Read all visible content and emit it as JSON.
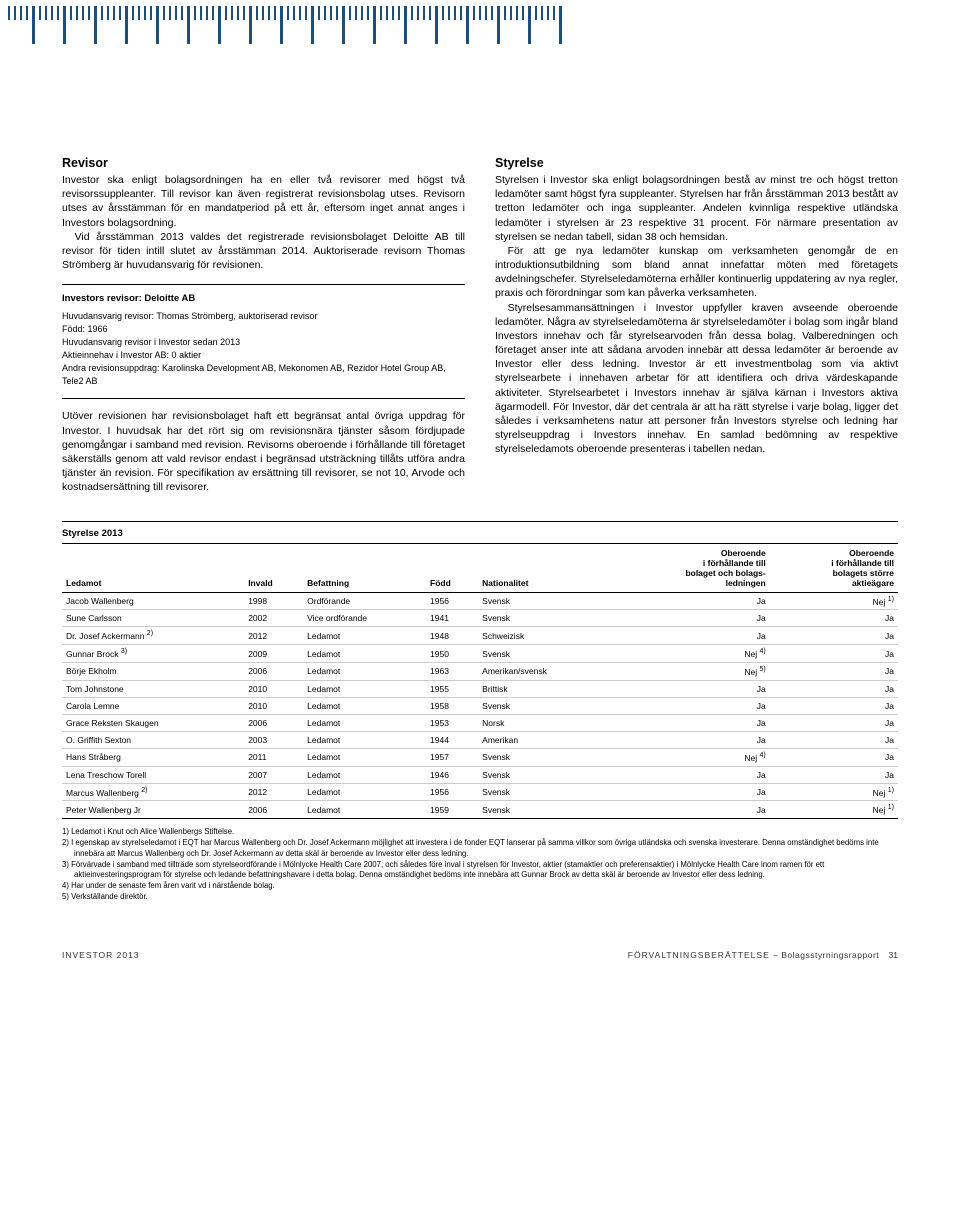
{
  "tickband": {
    "pattern_units": 18,
    "short_color": "#1f4e79",
    "long_color": "#1f4e79"
  },
  "left": {
    "h_revisor": "Revisor",
    "p1": "Investor ska enligt bolagsordningen ha en eller två revisorer med högst två revisorssuppleanter. Till revisor kan även registrerat revisionsbolag utses. Revisorn utses av årsstämman för en mandatperiod på ett år, eftersom inget annat anges i Investors bolagsordning.",
    "p2": "Vid årsstämman 2013 valdes det registrerade revisionsbolaget Deloitte AB till revisor för tiden intill slutet av årsstämman 2014. Auktoriserade revisorn Thomas Strömberg är huvudansvarig för revisionen.",
    "box_title": "Investors revisor: Deloitte AB",
    "box_lines": [
      "Huvudansvarig revisor: Thomas Strömberg, auktoriserad revisor",
      "Född: 1966",
      "Huvudansvarig revisor i Investor sedan 2013",
      "Aktieinnehav i Investor AB: 0 aktier",
      "Andra revisionsuppdrag: Karolinska Development AB, Mekonomen AB, Rezidor Hotel Group AB, Tele2 AB"
    ],
    "p3": "Utöver revisionen har revisionsbolaget haft ett begränsat antal övriga uppdrag för Investor. I huvudsak har det rört sig om revisionsnära tjänster såsom fördjupade genomgångar i samband med revision. Revisorns oberoende i förhållande till företaget säkerställs genom att vald revisor endast i begränsad utsträckning tillåts utföra andra tjänster än revision. För specifikation av ersättning till revisorer, se not 10, Arvode och kostnadsersättning till revisorer."
  },
  "right": {
    "h_styrelse": "Styrelse",
    "p1": "Styrelsen i Investor ska enligt bolagsordningen bestå av minst tre och högst tretton ledamöter samt högst fyra suppleanter. Styrelsen har från årsstämman 2013 bestått av tretton ledamöter och inga suppleanter. Andelen kvinnliga respektive utländska ledamöter i styrelsen är 23 respektive 31 procent. För närmare presentation av styrelsen se nedan tabell, sidan 38 och hemsidan.",
    "p2": "För att ge nya ledamöter kunskap om verksamheten genomgår de en introduktionsutbildning som bland annat innefattar möten med företagets avdelningschefer. Styrelseledamöterna erhåller kontinuerlig uppdatering av nya regler, praxis och förordningar som kan påverka verksamheten.",
    "p3": "Styrelsesammansättningen i Investor uppfyller kraven avseende oberoende ledamöter. Några av styrelseledamöterna är styrelseledamöter i bolag som ingår bland Investors innehav och får styrelsearvoden från dessa bolag. Valberedningen och företaget anser inte att sådana arvoden innebär att dessa ledamöter är beroende av Investor eller dess ledning. Investor är ett investmentbolag som via aktivt styrelsearbete i innehaven arbetar för att identifiera och driva värdeskapande aktiviteter. Styrelsearbetet i Investors innehav är själva kärnan i Investors aktiva ägarmodell. För Investor, där det centrala är att ha rätt styrelse i varje bolag, ligger det således i verksamhetens natur att personer från Investors styrelse och ledning har styrelseuppdrag i Investors innehav. En samlad bedömning av respektive styrelseledamots oberoende presenteras i tabellen nedan."
  },
  "table": {
    "title": "Styrelse 2013",
    "headers": {
      "ledamot": "Ledamot",
      "invald": "Invald",
      "befattning": "Befattning",
      "fodd": "Född",
      "nationalitet": "Nationalitet",
      "oberoende1": "Oberoende\ni förhållande till\nbolaget och bolags-\nledningen",
      "oberoende2": "Oberoende\ni förhållande till\nbolagets större\naktieägare"
    },
    "rows": [
      {
        "n": "Jacob Wallenberg",
        "inv": "1998",
        "bef": "Ordförande",
        "f": "1956",
        "nat": "Svensk",
        "o1": "Ja",
        "o2": "Nej",
        "o2s": "1)"
      },
      {
        "n": "Sune Carlsson",
        "inv": "2002",
        "bef": "Vice ordförande",
        "f": "1941",
        "nat": "Svensk",
        "o1": "Ja",
        "o2": "Ja"
      },
      {
        "n": "Dr. Josef Ackermann",
        "ns": "2)",
        "inv": "2012",
        "bef": "Ledamot",
        "f": "1948",
        "nat": "Schweizisk",
        "o1": "Ja",
        "o2": "Ja"
      },
      {
        "n": "Gunnar Brock",
        "ns": "3)",
        "inv": "2009",
        "bef": "Ledamot",
        "f": "1950",
        "nat": "Svensk",
        "o1": "Nej",
        "o1s": "4)",
        "o2": "Ja"
      },
      {
        "n": "Börje Ekholm",
        "inv": "2006",
        "bef": "Ledamot",
        "f": "1963",
        "nat": "Amerikan/svensk",
        "o1": "Nej",
        "o1s": "5)",
        "o2": "Ja"
      },
      {
        "n": "Tom Johnstone",
        "inv": "2010",
        "bef": "Ledamot",
        "f": "1955",
        "nat": "Brittisk",
        "o1": "Ja",
        "o2": "Ja"
      },
      {
        "n": "Carola Lemne",
        "inv": "2010",
        "bef": "Ledamot",
        "f": "1958",
        "nat": "Svensk",
        "o1": "Ja",
        "o2": "Ja"
      },
      {
        "n": "Grace Reksten Skaugen",
        "inv": "2006",
        "bef": "Ledamot",
        "f": "1953",
        "nat": "Norsk",
        "o1": "Ja",
        "o2": "Ja"
      },
      {
        "n": "O. Griffith Sexton",
        "inv": "2003",
        "bef": "Ledamot",
        "f": "1944",
        "nat": "Amerikan",
        "o1": "Ja",
        "o2": "Ja"
      },
      {
        "n": "Hans Stråberg",
        "inv": "2011",
        "bef": "Ledamot",
        "f": "1957",
        "nat": "Svensk",
        "o1": "Nej",
        "o1s": "4)",
        "o2": "Ja"
      },
      {
        "n": "Lena Treschow Torell",
        "inv": "2007",
        "bef": "Ledamot",
        "f": "1946",
        "nat": "Svensk",
        "o1": "Ja",
        "o2": "Ja"
      },
      {
        "n": "Marcus Wallenberg",
        "ns": "2)",
        "inv": "2012",
        "bef": "Ledamot",
        "f": "1956",
        "nat": "Svensk",
        "o1": "Ja",
        "o2": "Nej",
        "o2s": "1)"
      },
      {
        "n": "Peter Wallenberg Jr",
        "inv": "2006",
        "bef": "Ledamot",
        "f": "1959",
        "nat": "Svensk",
        "o1": "Ja",
        "o2": "Nej",
        "o2s": "1)"
      }
    ]
  },
  "footnotes": [
    "1) Ledamot i Knut och Alice Wallenbergs Stiftelse.",
    "2) I egenskap av styrelseledamot i EQT har Marcus Wallenberg och Dr. Josef Ackermann möjlighet att investera i de fonder EQT lanserar på samma villkor som övriga utländska och svenska investerare. Denna omständighet bedöms inte innebära att Marcus Wallenberg och Dr. Josef Ackermann av detta skäl är beroende av Investor eller dess ledning.",
    "3) Förvärvade i samband med tillträde som styrelseordförande i Mölnlycke Health Care 2007, och således före inval i styrelsen för Investor, aktier (stamaktier och preferensaktier) i Mölnlycke Health Care inom ramen för ett aktieinvesteringsprogram för styrelse och ledande befattningshavare i detta bolag. Denna omständighet bedöms inte innebära att Gunnar Brock av detta skäl är beroende av Investor eller dess ledning.",
    "4) Har under de senaste fem åren varit vd i närstående bolag.",
    "5) Verkställande direktör."
  ],
  "footer": {
    "left": "INVESTOR 2013",
    "right_a": "FÖRVALTNINGSBERÄTTELSE",
    "right_b": "– Bolagsstyrningsrapport",
    "page": "31"
  }
}
